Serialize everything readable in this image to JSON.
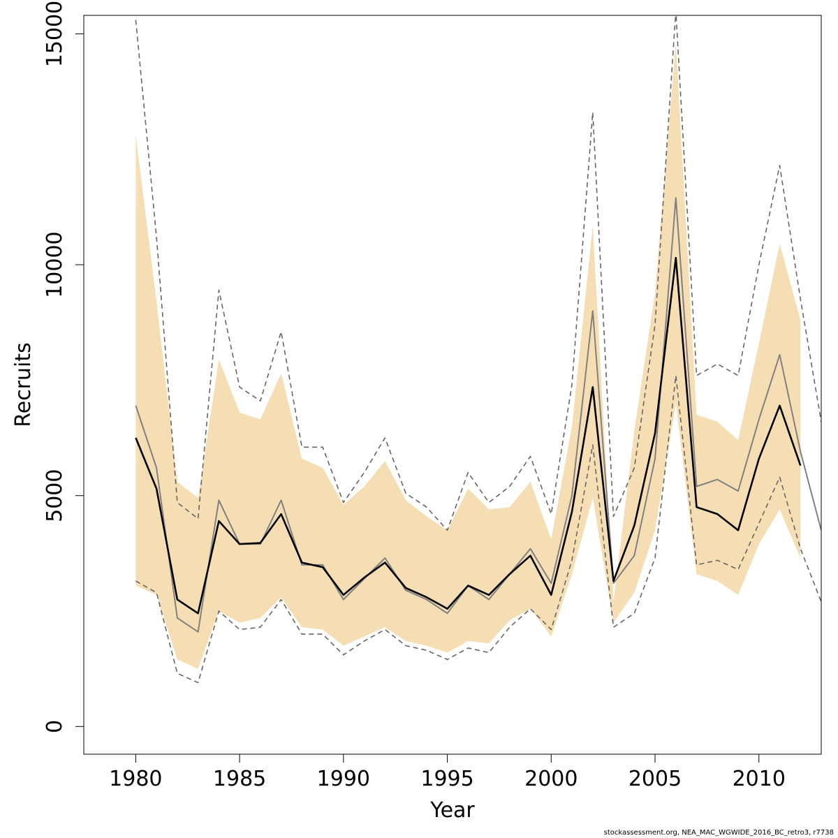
{
  "chart_data": {
    "type": "line",
    "xlabel": "Year",
    "ylabel": "Recruits",
    "xlim": [
      1977.5,
      2013
    ],
    "ylim": [
      -600,
      15400
    ],
    "x_ticks": [
      1980,
      1985,
      1990,
      1995,
      2000,
      2005,
      2010
    ],
    "y_ticks": [
      0,
      5000,
      10000,
      15000
    ],
    "grid": false,
    "legend": "none",
    "colors": {
      "band": "#f5deb3",
      "estimate": "#000000",
      "retro": "#808080",
      "retro_ci": "#666666"
    },
    "band": {
      "x": [
        1980,
        1981,
        1982,
        1983,
        1984,
        1985,
        1986,
        1987,
        1988,
        1989,
        1990,
        1991,
        1992,
        1993,
        1994,
        1995,
        1996,
        1997,
        1998,
        1999,
        2000,
        2001,
        2002,
        2003,
        2004,
        2005,
        2006,
        2007,
        2008,
        2009,
        2010,
        2011,
        2012
      ],
      "upper": [
        12800,
        9200,
        5300,
        4950,
        7950,
        6800,
        6650,
        7650,
        5800,
        5600,
        4800,
        5200,
        5750,
        4900,
        4550,
        4250,
        5150,
        4700,
        4750,
        5300,
        4050,
        6500,
        10850,
        2700,
        6400,
        9400,
        14800,
        6750,
        6600,
        6200,
        8300,
        10450,
        8800
      ],
      "lower": [
        3050,
        2850,
        1450,
        1250,
        2500,
        2250,
        2350,
        2800,
        2150,
        2100,
        1750,
        1950,
        2150,
        1850,
        1750,
        1600,
        1850,
        1800,
        2300,
        2550,
        1950,
        3300,
        4950,
        2250,
        2900,
        4250,
        7000,
        3300,
        3150,
        2850,
        3950,
        4700,
        3650
      ]
    },
    "series": [
      {
        "role": "estimate",
        "x": [
          1980,
          1981,
          1982,
          1983,
          1984,
          1985,
          1986,
          1987,
          1988,
          1989,
          1990,
          1991,
          1992,
          1993,
          1994,
          1995,
          1996,
          1997,
          1998,
          1999,
          2000,
          2001,
          2002,
          2003,
          2004,
          2005,
          2006,
          2007,
          2008,
          2009,
          2010,
          2011,
          2012
        ],
        "y": [
          6250,
          5150,
          2750,
          2450,
          4450,
          3950,
          3975,
          4600,
          3550,
          3450,
          2850,
          3225,
          3550,
          3000,
          2800,
          2550,
          3050,
          2850,
          3300,
          3700,
          2850,
          4650,
          7350,
          3150,
          4350,
          6350,
          10150,
          4750,
          4600,
          4250,
          5800,
          6950,
          5650
        ]
      },
      {
        "role": "retro",
        "x": [
          1980,
          1981,
          1982,
          1983,
          1984,
          1985,
          1986,
          1987,
          1988,
          1989,
          1990,
          1991,
          1992,
          1993,
          1994,
          1995,
          1996,
          1997,
          1998,
          1999,
          2000,
          2001,
          2002,
          2003,
          2004,
          2005,
          2006,
          2007,
          2008,
          2009,
          2010,
          2011,
          2012,
          2013
        ],
        "y": [
          6950,
          5600,
          2350,
          2050,
          4900,
          3950,
          3950,
          4900,
          3500,
          3500,
          2750,
          3200,
          3650,
          2950,
          2750,
          2450,
          3050,
          2750,
          3300,
          3850,
          3100,
          5000,
          9000,
          3100,
          3700,
          5800,
          11450,
          5200,
          5350,
          5100,
          6650,
          8050,
          5950,
          4250
        ]
      },
      {
        "role": "retro-upper",
        "x": [
          1980,
          1981,
          1982,
          1983,
          1984,
          1985,
          1986,
          1987,
          1988,
          1989,
          1990,
          1991,
          1992,
          1993,
          1994,
          1995,
          1996,
          1997,
          1998,
          1999,
          2000,
          2001,
          2002,
          2003,
          2004,
          2005,
          2006,
          2007,
          2008,
          2009,
          2010,
          2011,
          2012,
          2013
        ],
        "y": [
          15300,
          10600,
          4850,
          4500,
          9450,
          7350,
          7050,
          8550,
          6050,
          6050,
          4850,
          5500,
          6250,
          5050,
          4750,
          4250,
          5500,
          4850,
          5200,
          5850,
          4600,
          7400,
          13300,
          4550,
          5600,
          8700,
          15500,
          7600,
          7850,
          7600,
          10000,
          12150,
          9250,
          6600
        ]
      },
      {
        "role": "retro-lower",
        "x": [
          1980,
          1981,
          1982,
          1983,
          1984,
          1985,
          1986,
          1987,
          1988,
          1989,
          1990,
          1991,
          1992,
          1993,
          1994,
          1995,
          1996,
          1997,
          1998,
          1999,
          2000,
          2001,
          2002,
          2003,
          2004,
          2005,
          2006,
          2007,
          2008,
          2009,
          2010,
          2011,
          2012,
          2013
        ],
        "y": [
          3150,
          2900,
          1150,
          950,
          2500,
          2100,
          2150,
          2750,
          2000,
          2000,
          1550,
          1850,
          2100,
          1750,
          1650,
          1450,
          1700,
          1600,
          2150,
          2550,
          2100,
          3600,
          6100,
          2150,
          2450,
          3650,
          7600,
          3500,
          3600,
          3400,
          4400,
          5400,
          3850,
          2700
        ]
      }
    ]
  },
  "footer": {
    "credit": "stockassessment.org, NEA_MAC_WGWIDE_2016_BC_retro3, r7738"
  }
}
